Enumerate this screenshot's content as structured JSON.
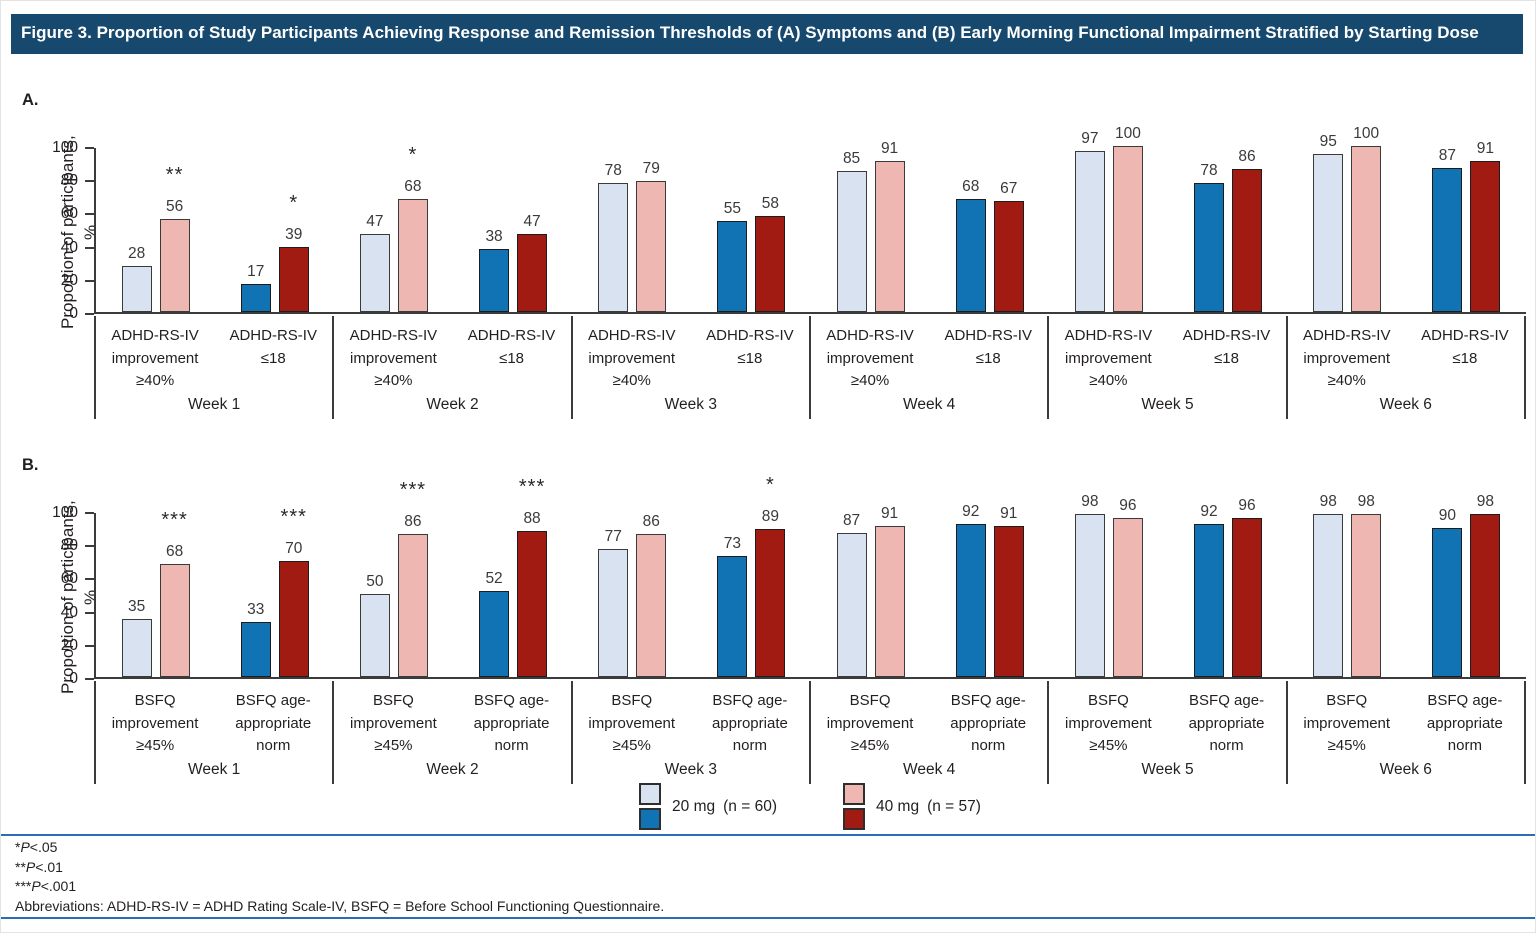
{
  "title": "Figure 3. Proportion of Study Participants Achieving Response and Remission Thresholds of (A) Symptoms and (B) Early Morning Functional Impairment Stratified by Starting Dose",
  "colors": {
    "title_bar": "#17496e",
    "rule_blue": "#2a6db5",
    "mg20_light": "#d9e2f1",
    "mg40_light": "#efb7b2",
    "mg20_dark": "#1173b4",
    "mg40_dark": "#a21b12",
    "axis": "#3b3b3b"
  },
  "chart_data": [
    {
      "type": "bar",
      "panel_letter": "A.",
      "ylabel_lines": [
        "Proportion of participants,",
        "%"
      ],
      "ylim": [
        0,
        100
      ],
      "yticks": [
        100,
        80,
        60,
        40,
        20,
        0
      ],
      "series_names": [
        "20 mg (n = 60)",
        "40 mg (n = 57)"
      ],
      "legend_position": "bottom",
      "grid": false,
      "groups": [
        {
          "week": "Week 1",
          "categories": [
            {
              "label_lines": [
                "ADHD-RS-IV",
                "improvement",
                "≥40%"
              ],
              "shade": "light",
              "values": [
                28,
                56
              ],
              "sig": "**"
            },
            {
              "label_lines": [
                "ADHD-RS-IV",
                "≤18"
              ],
              "shade": "dark",
              "values": [
                17,
                39
              ],
              "sig": "*"
            }
          ]
        },
        {
          "week": "Week 2",
          "categories": [
            {
              "label_lines": [
                "ADHD-RS-IV",
                "improvement",
                "≥40%"
              ],
              "shade": "light",
              "values": [
                47,
                68
              ],
              "sig": "*"
            },
            {
              "label_lines": [
                "ADHD-RS-IV",
                "≤18"
              ],
              "shade": "dark",
              "values": [
                38,
                47
              ],
              "sig": null
            }
          ]
        },
        {
          "week": "Week 3",
          "categories": [
            {
              "label_lines": [
                "ADHD-RS-IV",
                "improvement",
                "≥40%"
              ],
              "shade": "light",
              "values": [
                78,
                79
              ],
              "sig": null
            },
            {
              "label_lines": [
                "ADHD-RS-IV",
                "≤18"
              ],
              "shade": "dark",
              "values": [
                55,
                58
              ],
              "sig": null
            }
          ]
        },
        {
          "week": "Week 4",
          "categories": [
            {
              "label_lines": [
                "ADHD-RS-IV",
                "improvement",
                "≥40%"
              ],
              "shade": "light",
              "values": [
                85,
                91
              ],
              "sig": null
            },
            {
              "label_lines": [
                "ADHD-RS-IV",
                "≤18"
              ],
              "shade": "dark",
              "values": [
                68,
                67
              ],
              "sig": null
            }
          ]
        },
        {
          "week": "Week 5",
          "categories": [
            {
              "label_lines": [
                "ADHD-RS-IV",
                "improvement",
                "≥40%"
              ],
              "shade": "light",
              "values": [
                97,
                100
              ],
              "sig": null
            },
            {
              "label_lines": [
                "ADHD-RS-IV",
                "≤18"
              ],
              "shade": "dark",
              "values": [
                78,
                86
              ],
              "sig": null
            }
          ]
        },
        {
          "week": "Week 6",
          "categories": [
            {
              "label_lines": [
                "ADHD-RS-IV",
                "improvement",
                "≥40%"
              ],
              "shade": "light",
              "values": [
                95,
                100
              ],
              "sig": null
            },
            {
              "label_lines": [
                "ADHD-RS-IV",
                "≤18"
              ],
              "shade": "dark",
              "values": [
                87,
                91
              ],
              "sig": null
            }
          ]
        }
      ]
    },
    {
      "type": "bar",
      "panel_letter": "B.",
      "ylabel_lines": [
        "Proportion of participants,",
        "%"
      ],
      "ylim": [
        0,
        100
      ],
      "yticks": [
        100,
        80,
        60,
        40,
        20,
        0
      ],
      "series_names": [
        "20 mg (n = 60)",
        "40 mg (n = 57)"
      ],
      "legend_position": "bottom",
      "grid": false,
      "groups": [
        {
          "week": "Week 1",
          "categories": [
            {
              "label_lines": [
                "BSFQ",
                "improvement",
                "≥45%"
              ],
              "shade": "light",
              "values": [
                35,
                68
              ],
              "sig": "***"
            },
            {
              "label_lines": [
                "BSFQ age-",
                "appropriate",
                "norm"
              ],
              "shade": "dark",
              "values": [
                33,
                70
              ],
              "sig": "***"
            }
          ]
        },
        {
          "week": "Week 2",
          "categories": [
            {
              "label_lines": [
                "BSFQ",
                "improvement",
                "≥45%"
              ],
              "shade": "light",
              "values": [
                50,
                86
              ],
              "sig": "***"
            },
            {
              "label_lines": [
                "BSFQ age-",
                "appropriate",
                "norm"
              ],
              "shade": "dark",
              "values": [
                52,
                88
              ],
              "sig": "***"
            }
          ]
        },
        {
          "week": "Week 3",
          "categories": [
            {
              "label_lines": [
                "BSFQ",
                "improvement",
                "≥45%"
              ],
              "shade": "light",
              "values": [
                77,
                86
              ],
              "sig": null
            },
            {
              "label_lines": [
                "BSFQ age-",
                "appropriate",
                "norm"
              ],
              "shade": "dark",
              "values": [
                73,
                89
              ],
              "sig": "*"
            }
          ]
        },
        {
          "week": "Week 4",
          "categories": [
            {
              "label_lines": [
                "BSFQ",
                "improvement",
                "≥45%"
              ],
              "shade": "light",
              "values": [
                87,
                91
              ],
              "sig": null
            },
            {
              "label_lines": [
                "BSFQ age-",
                "appropriate",
                "norm"
              ],
              "shade": "dark",
              "values": [
                92,
                91
              ],
              "sig": null
            }
          ]
        },
        {
          "week": "Week 5",
          "categories": [
            {
              "label_lines": [
                "BSFQ",
                "improvement",
                "≥45%"
              ],
              "shade": "light",
              "values": [
                98,
                96
              ],
              "sig": null
            },
            {
              "label_lines": [
                "BSFQ age-",
                "appropriate",
                "norm"
              ],
              "shade": "dark",
              "values": [
                92,
                96
              ],
              "sig": null
            }
          ]
        },
        {
          "week": "Week 6",
          "categories": [
            {
              "label_lines": [
                "BSFQ",
                "improvement",
                "≥45%"
              ],
              "shade": "light",
              "values": [
                98,
                98
              ],
              "sig": null
            },
            {
              "label_lines": [
                "BSFQ age-",
                "appropriate",
                "norm"
              ],
              "shade": "dark",
              "values": [
                90,
                98
              ],
              "sig": null
            }
          ]
        }
      ]
    }
  ],
  "legend": [
    {
      "label": "20 mg",
      "n": "(n = 60)",
      "swatches": [
        "#d9e2f1",
        "#1173b4"
      ]
    },
    {
      "label": "40 mg",
      "n": "(n = 57)",
      "swatches": [
        "#efb7b2",
        "#a21b12"
      ]
    }
  ],
  "footnotes": {
    "sig_lines": [
      {
        "stars": "*",
        "p": "P",
        "cond": "<.05"
      },
      {
        "stars": "**",
        "p": "P",
        "cond": "<.01"
      },
      {
        "stars": "***",
        "p": "P",
        "cond": "<.001"
      }
    ],
    "abbreviations": "Abbreviations: ADHD-RS-IV = ADHD Rating Scale-IV, BSFQ = Before School Functioning Questionnaire."
  }
}
